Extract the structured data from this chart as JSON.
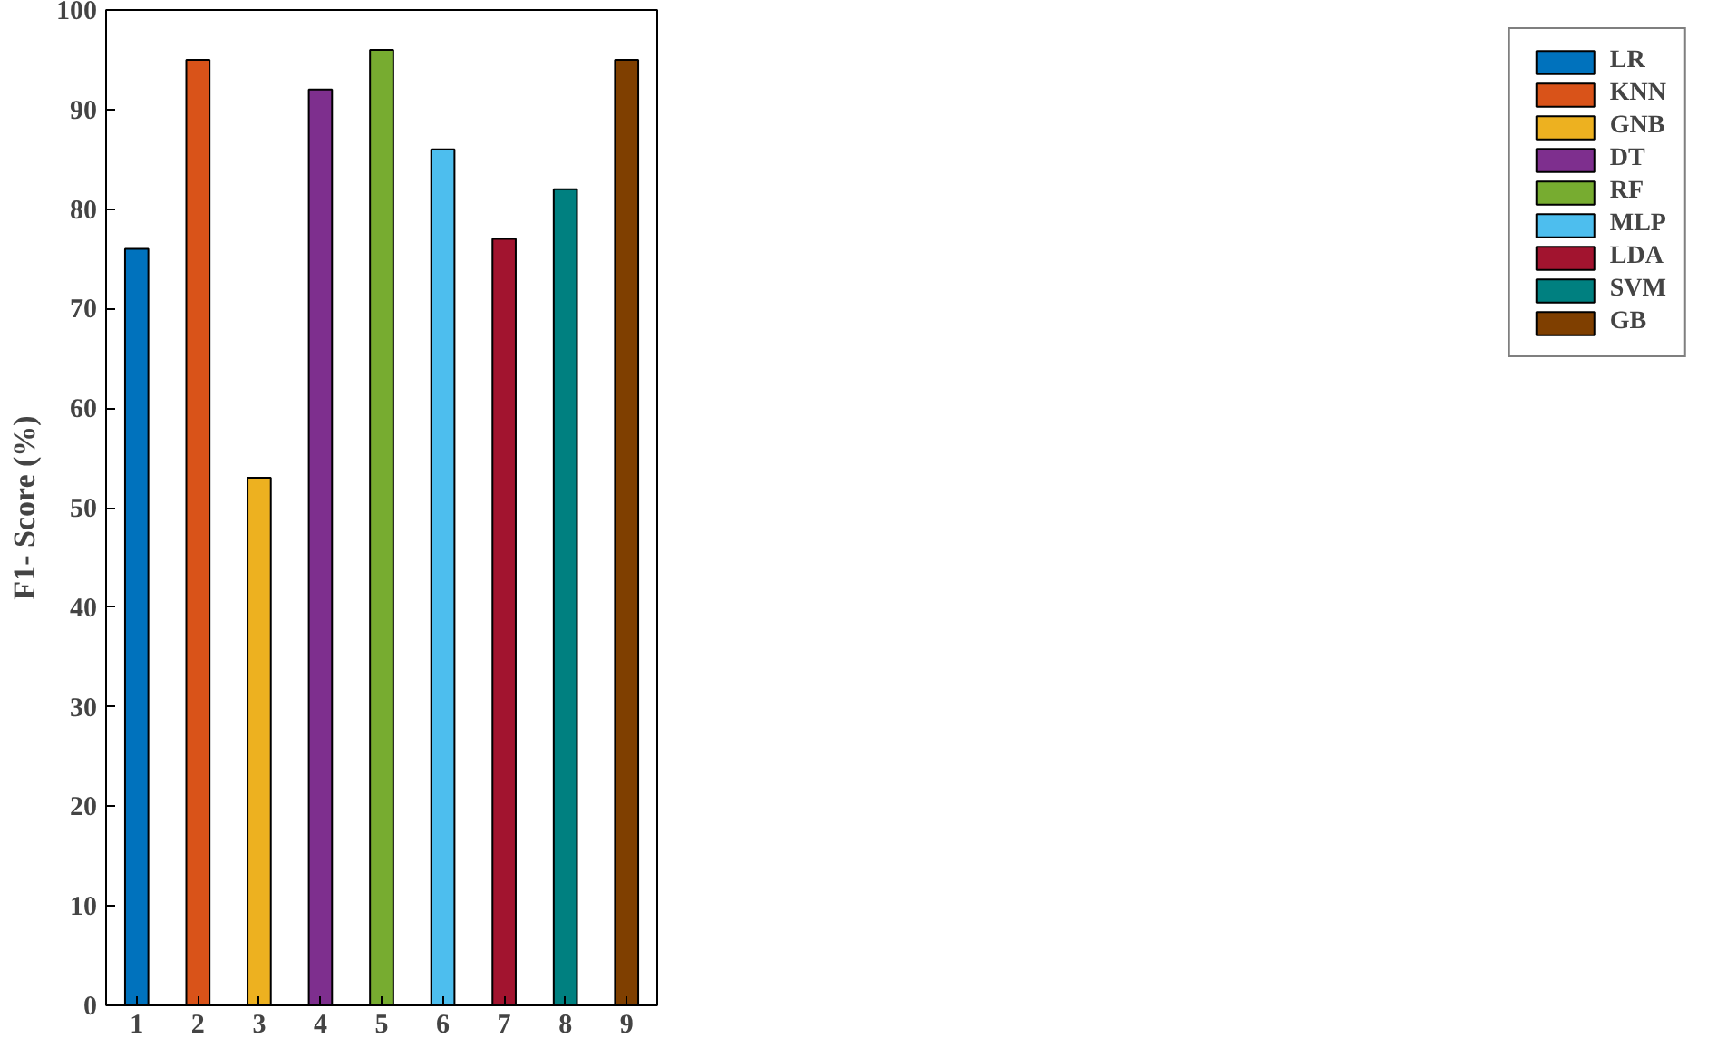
{
  "chart_data": {
    "type": "bar",
    "ylabel": "F1- Score (%)",
    "xlim": [
      0.5,
      9.5
    ],
    "xticks": [
      1,
      2,
      3,
      4,
      5,
      6,
      7,
      8,
      9
    ],
    "ylim": [
      0,
      100
    ],
    "yticks": [
      0,
      10,
      20,
      30,
      40,
      50,
      60,
      70,
      80,
      90,
      100
    ],
    "grid": false,
    "legend": "right",
    "series": [
      {
        "name": "LR",
        "color": "#0072bd",
        "x": [
          1
        ],
        "values": [
          76
        ]
      },
      {
        "name": "KNN",
        "color": "#d95319",
        "x": [
          2
        ],
        "values": [
          95
        ]
      },
      {
        "name": "GNB",
        "color": "#edb120",
        "x": [
          3
        ],
        "values": [
          53
        ]
      },
      {
        "name": "DT",
        "color": "#7e2f8e",
        "x": [
          4
        ],
        "values": [
          92
        ]
      },
      {
        "name": "RF",
        "color": "#77ac30",
        "x": [
          5
        ],
        "values": [
          96
        ]
      },
      {
        "name": "MLP",
        "color": "#4dbeee",
        "x": [
          6
        ],
        "values": [
          86
        ]
      },
      {
        "name": "LDA",
        "color": "#a2142f",
        "x": [
          7
        ],
        "values": [
          77
        ]
      },
      {
        "name": "SVM",
        "color": "#008080",
        "x": [
          8
        ],
        "values": [
          82
        ]
      },
      {
        "name": "GB",
        "color": "#7f3f00",
        "x": [
          9
        ],
        "values": [
          95
        ]
      }
    ]
  }
}
